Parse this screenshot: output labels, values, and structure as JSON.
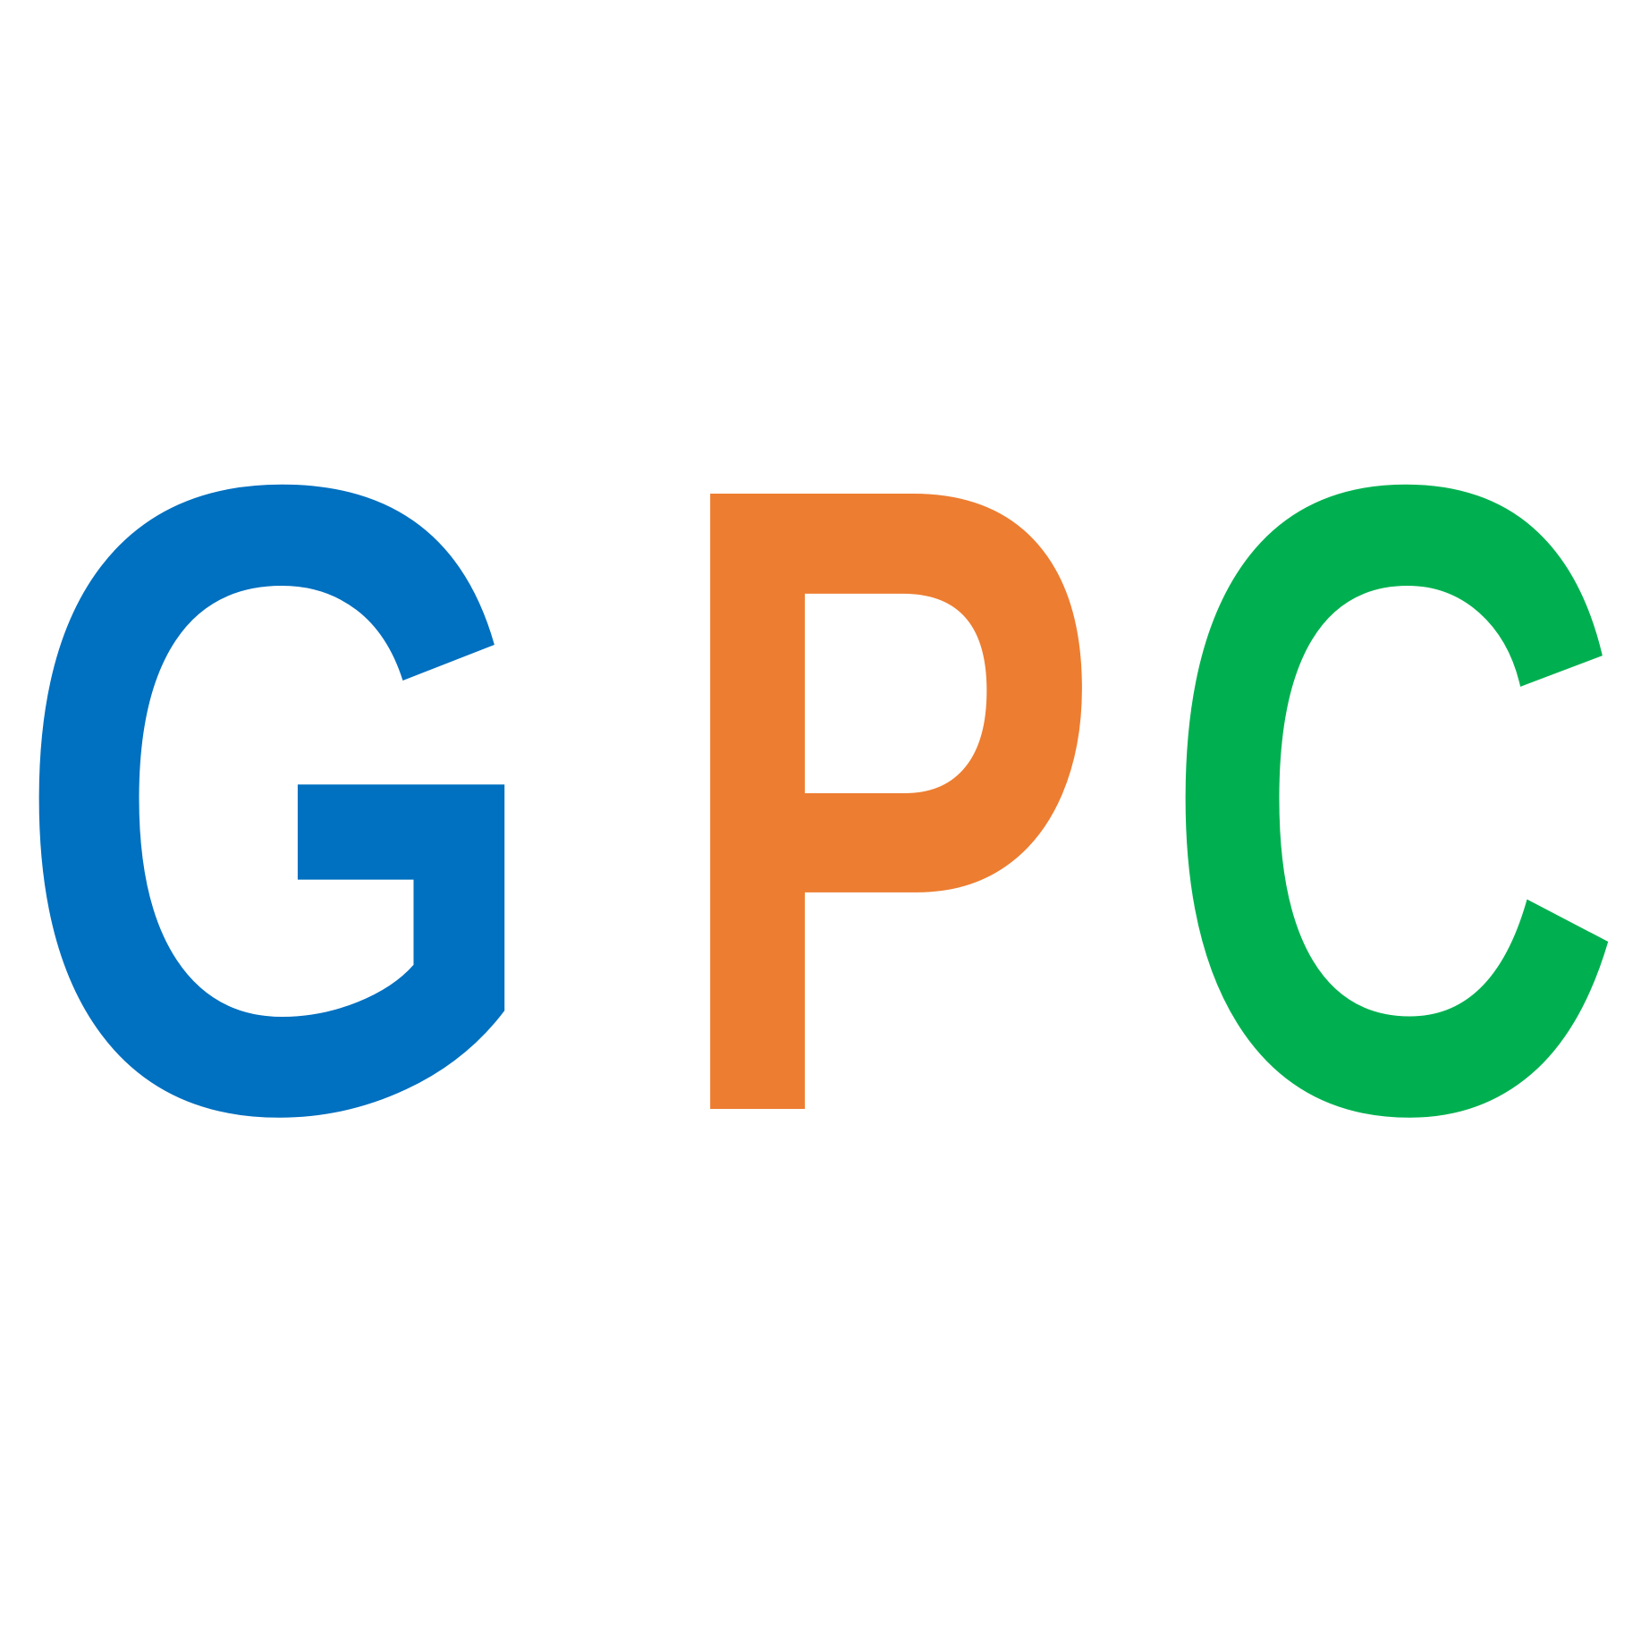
{
  "logo": {
    "letters": [
      {
        "text": "G",
        "color": "#0070c0"
      },
      {
        "text": "P",
        "color": "#ed7d31"
      },
      {
        "text": "C",
        "color": "#00b050"
      }
    ]
  }
}
